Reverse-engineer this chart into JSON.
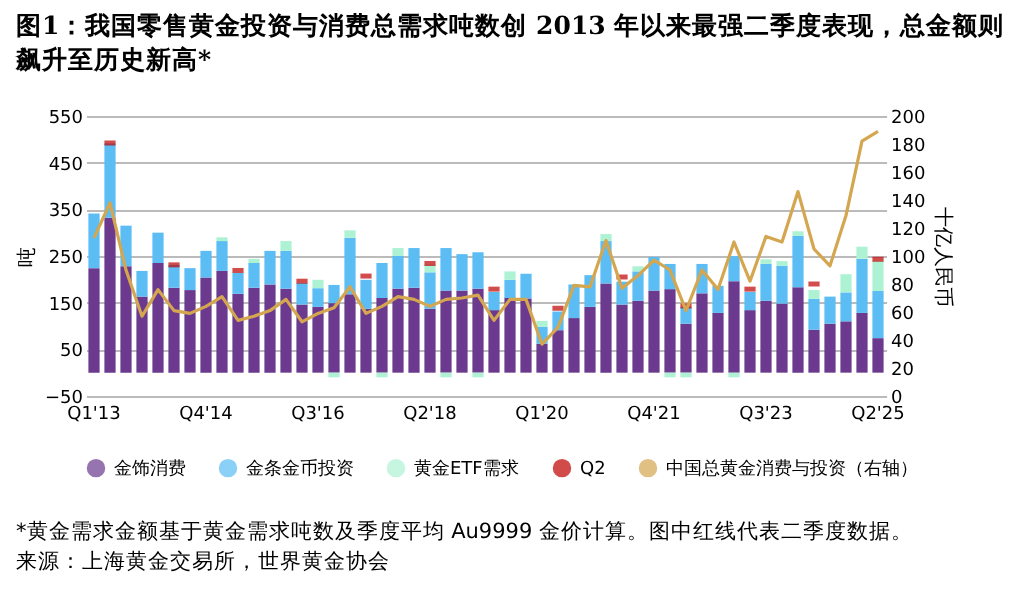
{
  "chart_data": {
    "type": "bar",
    "title": "图1：我国零售黄金投资与消费总需求吨数创 2013 年以来最强二季度表现，总金额则飙升至历史新高*",
    "categories": [
      "Q1'13",
      null,
      null,
      null,
      null,
      null,
      null,
      "Q4'14",
      null,
      null,
      null,
      null,
      null,
      null,
      "Q3'16",
      null,
      null,
      null,
      null,
      null,
      null,
      "Q2'18",
      null,
      null,
      null,
      null,
      null,
      null,
      "Q1'20",
      null,
      null,
      null,
      null,
      null,
      null,
      "Q4'21",
      null,
      null,
      null,
      null,
      null,
      null,
      "Q3'23",
      null,
      null,
      null,
      null,
      null,
      null,
      "Q2'25"
    ],
    "stacked": true,
    "series": [
      {
        "name": "金饰消费",
        "color": "#6b3a8e",
        "values": [
          224,
          332,
          228,
          163,
          235,
          182,
          177,
          204,
          218,
          169,
          182,
          189,
          180,
          146,
          141,
          149,
          168,
          137,
          160,
          180,
          182,
          137,
          176,
          176,
          180,
          134,
          160,
          159,
          62,
          91,
          117,
          141,
          191,
          146,
          154,
          176,
          179,
          105,
          170,
          128,
          196,
          134,
          154,
          148,
          183,
          92,
          105,
          110,
          128,
          74
        ]
      },
      {
        "name": "金条金币投资",
        "color": "#5bbdf4",
        "values": [
          117,
          159,
          87,
          55,
          65,
          49,
          47,
          57,
          64,
          45,
          53,
          72,
          81,
          46,
          40,
          39,
          121,
          62,
          75,
          70,
          85,
          78,
          91,
          78,
          78,
          39,
          39,
          53,
          36,
          40,
          72,
          68,
          91,
          49,
          63,
          72,
          54,
          36,
          63,
          58,
          54,
          39,
          79,
          81,
          110,
          66,
          58,
          62,
          116,
          101
        ]
      },
      {
        "name": "黄金ETF需求",
        "color": "#aef2d4",
        "values": [
          null,
          null,
          null,
          null,
          null,
          null,
          null,
          null,
          8,
          null,
          9,
          null,
          21,
          null,
          18,
          -10,
          16,
          null,
          -10,
          17,
          null,
          17,
          -10,
          null,
          -10,
          null,
          18,
          null,
          13,
          null,
          null,
          null,
          15,
          null,
          11,
          null,
          -10,
          -10,
          null,
          null,
          -10,
          null,
          10,
          10,
          10,
          19,
          null,
          39,
          26,
          65
        ]
      },
      {
        "name": "Q2",
        "type": "scatter",
        "color": "#c00000",
        "values": [
          null,
          492,
          null,
          null,
          null,
          231,
          null,
          null,
          null,
          219,
          null,
          null,
          null,
          196,
          null,
          null,
          null,
          207,
          null,
          null,
          null,
          234,
          null,
          null,
          null,
          179,
          null,
          null,
          null,
          138,
          null,
          null,
          null,
          205,
          null,
          null,
          null,
          143,
          null,
          null,
          null,
          179,
          null,
          null,
          null,
          190,
          null,
          null,
          null,
          243
        ]
      },
      {
        "name": "中国总黄金消费与投资（右轴）",
        "type": "line",
        "axis": "y2",
        "color": "#d4a64f",
        "values": [
          113,
          138,
          90,
          57,
          76,
          61,
          59,
          64,
          71,
          54,
          57,
          61,
          69,
          53,
          59,
          63,
          78,
          59,
          64,
          71,
          69,
          64,
          69,
          70,
          72,
          54,
          69,
          69,
          37,
          49,
          79,
          78,
          111,
          77,
          86,
          97,
          90,
          61,
          90,
          76,
          110,
          82,
          114,
          110,
          146,
          105,
          93,
          129,
          182,
          189
        ]
      }
    ],
    "ylabel": "吨",
    "y2label": "十亿人民币",
    "ylim": [
      -50,
      550
    ],
    "yticks": [
      -50,
      50,
      150,
      250,
      350,
      450,
      550
    ],
    "y2lim": [
      0,
      200
    ],
    "y2ticks": [
      0,
      20,
      40,
      60,
      80,
      100,
      120,
      140,
      160,
      180,
      200
    ],
    "grid": "y",
    "legend": "bottom",
    "annotations": [
      "*黄金需求金额基于黄金需求吨数及季度平均 Au9999 金价计算。图中红线代表二季度数据。",
      "来源：上海黄金交易所，世界黄金协会"
    ]
  }
}
